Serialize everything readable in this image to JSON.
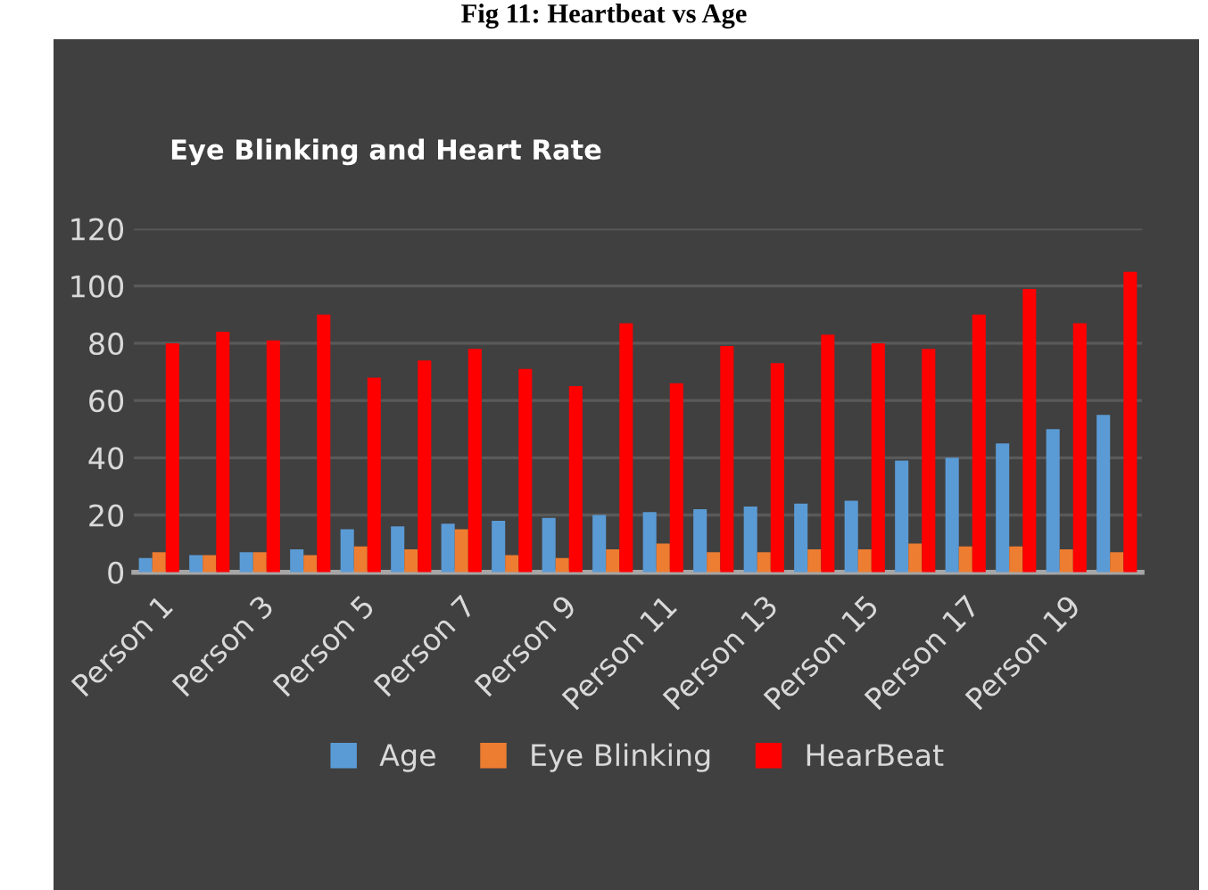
{
  "chart_data": {
    "type": "bar",
    "title": "Eye Blinking and Heart Rate",
    "annotations": [
      "Fig 11: Heartbeat vs Age"
    ],
    "categories": [
      "Person 1",
      null,
      "Person 3",
      null,
      "Person 5",
      null,
      "Person 7",
      null,
      "Person 9",
      null,
      "Person 11",
      null,
      "Person 13",
      null,
      "Person 15",
      null,
      "Person 17",
      null,
      "Person 19",
      null
    ],
    "series": [
      {
        "name": "Age",
        "color": "#5b9bd5",
        "values": [
          5,
          6,
          7,
          8,
          15,
          16,
          17,
          18,
          19,
          20,
          21,
          22,
          23,
          24,
          25,
          39,
          40,
          45,
          50,
          55
        ]
      },
      {
        "name": "Eye Blinking",
        "color": "#ed7d31",
        "values": [
          7,
          6,
          7,
          6,
          9,
          8,
          15,
          6,
          5,
          8,
          10,
          7,
          7,
          8,
          8,
          10,
          9,
          9,
          8,
          7
        ]
      },
      {
        "name": "HearBeat",
        "color": "#ff0000",
        "values": [
          80,
          84,
          81,
          90,
          68,
          74,
          78,
          71,
          65,
          87,
          66,
          79,
          73,
          83,
          80,
          78,
          90,
          99,
          87,
          105
        ]
      }
    ],
    "ylim": [
      0,
      120
    ],
    "yticks": [
      0,
      20,
      40,
      60,
      80,
      100,
      120
    ],
    "grid": "y",
    "legend": "bottom"
  }
}
